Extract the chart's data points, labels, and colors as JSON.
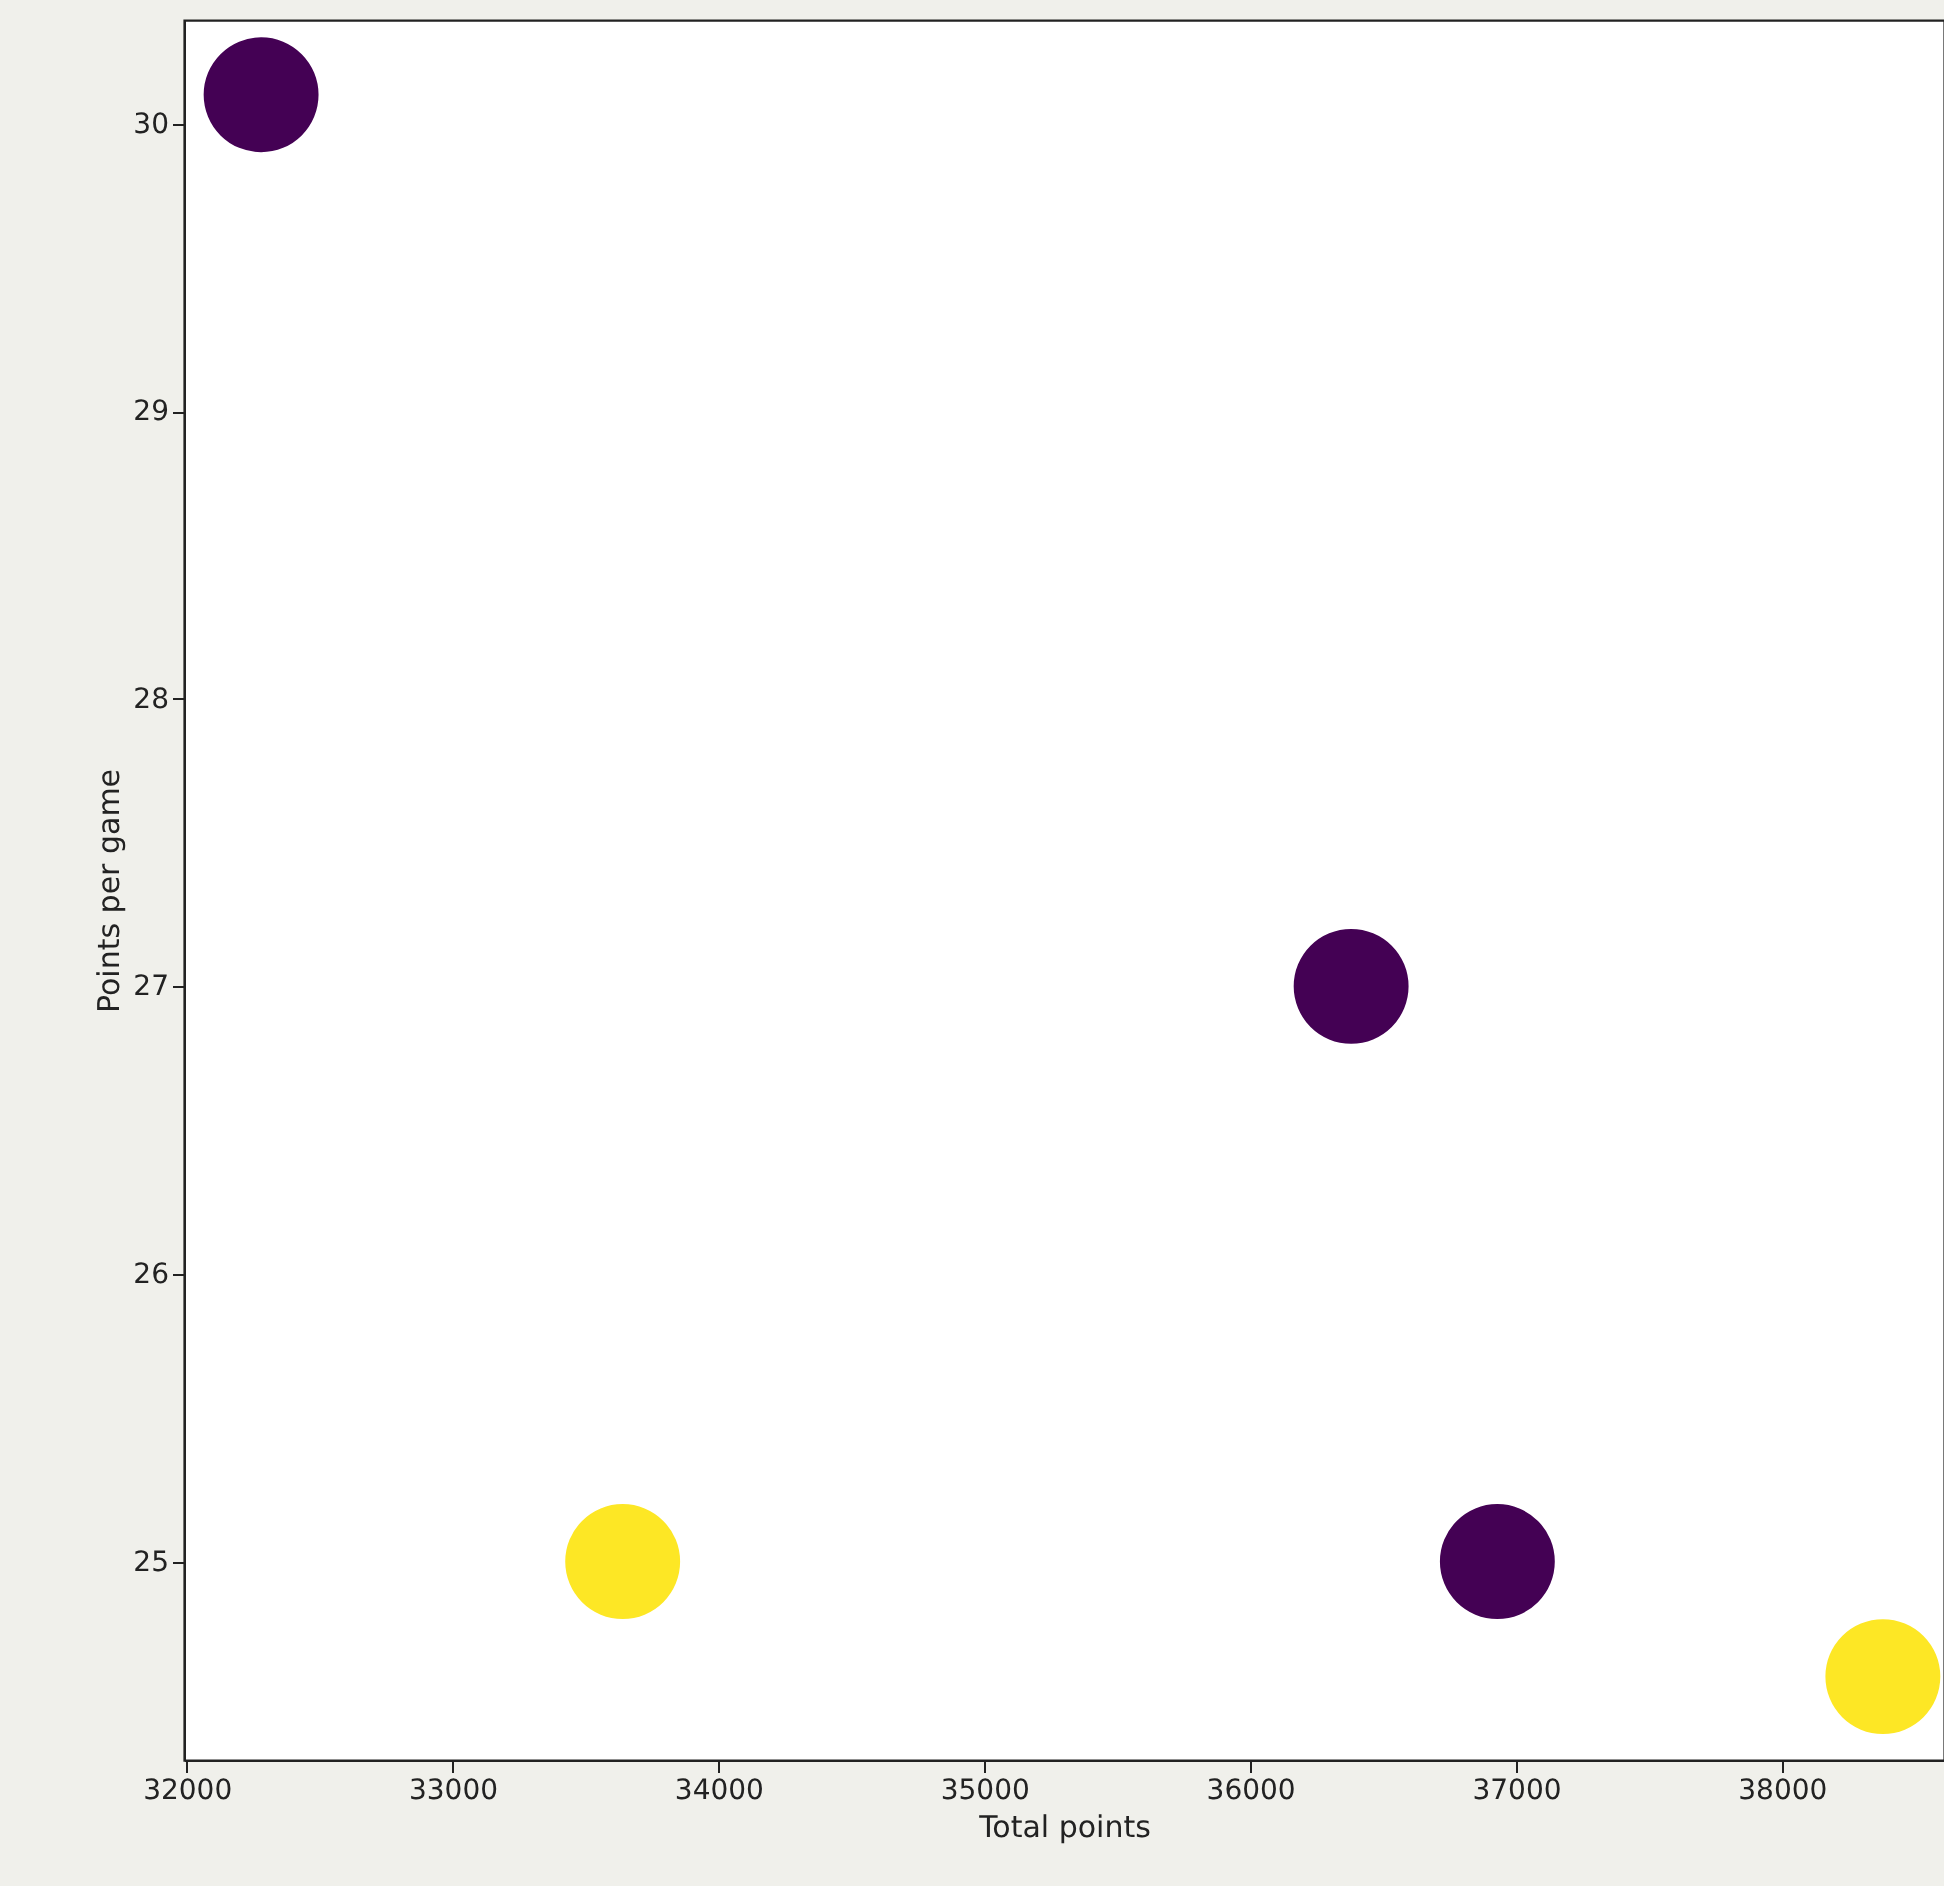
{
  "chart_data": {
    "type": "scatter",
    "xlabel": "Total points",
    "ylabel": "Points per game",
    "xlim": [
      31990,
      38610
    ],
    "ylim": [
      24.31,
      30.36
    ],
    "xticks": [
      32000,
      33000,
      34000,
      35000,
      36000,
      37000,
      38000
    ],
    "yticks": [
      25,
      26,
      27,
      28,
      29,
      30
    ],
    "grid": false,
    "marker": "circle",
    "series": [
      {
        "color": "#440154",
        "x": [
          32280,
          36380,
          36930
        ],
        "values": [
          30.1,
          27.0,
          25.0
        ]
      },
      {
        "color": "#fde725",
        "x": [
          33640,
          38380
        ],
        "values": [
          25.0,
          24.6
        ]
      }
    ]
  }
}
